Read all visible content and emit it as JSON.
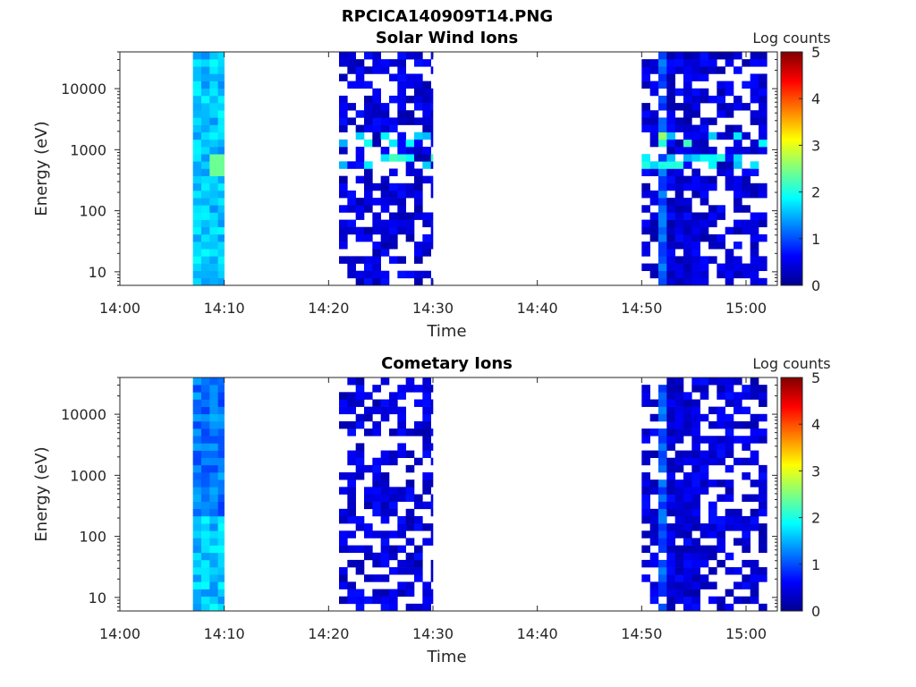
{
  "figure": {
    "main_title": "RPCICA140909T14.PNG"
  },
  "colorbar": {
    "label": "Log counts",
    "ticks": [
      0,
      1,
      2,
      3,
      4,
      5
    ],
    "range": [
      0,
      5
    ],
    "colormap": "jet"
  },
  "chart_data": [
    {
      "type": "heatmap",
      "title": "Solar Wind Ions",
      "xlabel": "Time",
      "ylabel": "Energy (eV)",
      "yscale": "log",
      "ylim": [
        6,
        40000
      ],
      "xlim": [
        "14:00",
        "15:03"
      ],
      "x_ticks": [
        "14:00",
        "14:10",
        "14:20",
        "14:30",
        "14:40",
        "14:50",
        "15:00"
      ],
      "y_ticks": [
        "10",
        "100",
        "1000",
        "10000"
      ],
      "color_range": [
        0,
        5
      ],
      "data_intervals": [
        {
          "start": "14:07",
          "end": "14:10",
          "description": "dense, values ~1-2, peak ~2.5 near 650 eV"
        },
        {
          "start": "14:21",
          "end": "14:30",
          "description": "sparse low counts, peaks ~2 near 650 and 1300 eV"
        },
        {
          "start": "14:50",
          "end": "15:02",
          "description": "dense low counts, peaks ~2 near 650 and 1300 eV"
        }
      ]
    },
    {
      "type": "heatmap",
      "title": "Cometary Ions",
      "xlabel": "Time",
      "ylabel": "Energy (eV)",
      "yscale": "log",
      "ylim": [
        6,
        40000
      ],
      "xlim": [
        "14:00",
        "15:03"
      ],
      "x_ticks": [
        "14:00",
        "14:10",
        "14:20",
        "14:30",
        "14:40",
        "14:50",
        "15:00"
      ],
      "y_ticks": [
        "10",
        "100",
        "1000",
        "10000"
      ],
      "color_range": [
        0,
        5
      ],
      "data_intervals": [
        {
          "start": "14:07",
          "end": "14:10",
          "description": "dense, values ~0.5-1.5, higher at low energies"
        },
        {
          "start": "14:21",
          "end": "14:30",
          "description": "sparse, mostly ~0.3"
        },
        {
          "start": "14:50",
          "end": "15:02",
          "description": "dense at 14:51-14:55, ~0.3-1.2"
        }
      ]
    }
  ]
}
